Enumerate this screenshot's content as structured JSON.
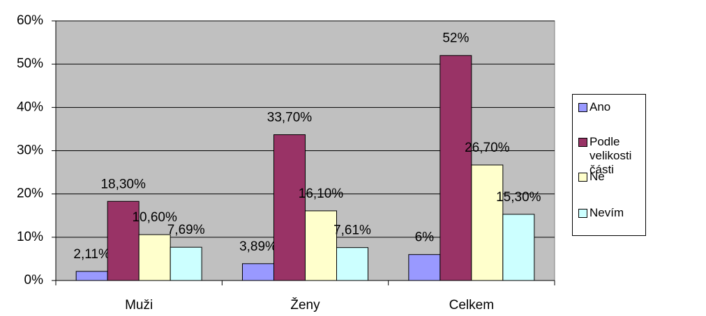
{
  "chart_data": {
    "type": "bar",
    "categories": [
      "Muži",
      "Ženy",
      "Celkem"
    ],
    "series": [
      {
        "name": "Ano",
        "color": "#9999ff",
        "values": [
          2.11,
          3.89,
          6
        ],
        "value_labels": [
          "2,11%",
          "3,89%",
          "6%"
        ]
      },
      {
        "name": "Podle velikosti části",
        "color": "#993366",
        "values": [
          18.3,
          33.7,
          52
        ],
        "value_labels": [
          "18,30%",
          "33,70%",
          "52%"
        ]
      },
      {
        "name": "Ne",
        "color": "#ffffcc",
        "values": [
          10.6,
          16.1,
          26.7
        ],
        "value_labels": [
          "10,60%",
          "16,10%",
          "26,70%"
        ]
      },
      {
        "name": "Nevím",
        "color": "#ccffff",
        "values": [
          7.69,
          7.61,
          15.3
        ],
        "value_labels": [
          "7,69%",
          "7,61%",
          "15,30%"
        ]
      }
    ],
    "ylim": [
      0,
      60
    ],
    "yticks": [
      {
        "value": 0,
        "label": "0%"
      },
      {
        "value": 10,
        "label": "10%"
      },
      {
        "value": 20,
        "label": "20%"
      },
      {
        "value": 30,
        "label": "30%"
      },
      {
        "value": 40,
        "label": "40%"
      },
      {
        "value": 50,
        "label": "50%"
      },
      {
        "value": 60,
        "label": "60%"
      }
    ],
    "grid": true,
    "plot_background": "#c0c0c0",
    "legend": "right"
  }
}
